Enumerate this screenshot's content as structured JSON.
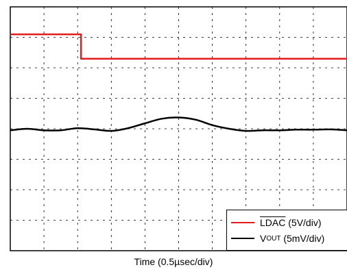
{
  "chart_data": {
    "type": "line",
    "xlabel": "Time (0.5µsec/div)",
    "ylabel": "",
    "grid": true,
    "x_divisions": 10,
    "y_divisions": 8,
    "legend_placement": "bottom-right",
    "series": [
      {
        "name": "LDAC",
        "scale": "(5V/div)",
        "color": "#e41a1c",
        "x": [
          0,
          2.1,
          2.1,
          10
        ],
        "y": [
          7.1,
          7.1,
          6.3,
          6.3
        ]
      },
      {
        "name": "V",
        "subscript": "OUT",
        "scale": "(5mV/div)",
        "color": "#000000",
        "x": [
          0,
          0.5,
          1,
          1.5,
          2,
          2.5,
          3,
          3.5,
          4,
          4.5,
          5,
          5.5,
          6,
          6.5,
          7,
          7.5,
          8,
          8.5,
          9,
          9.5,
          10
        ],
        "y": [
          3.95,
          4.0,
          3.95,
          3.95,
          4.02,
          3.98,
          3.93,
          4.02,
          4.18,
          4.33,
          4.37,
          4.3,
          4.12,
          4.0,
          3.93,
          3.95,
          3.95,
          3.97,
          3.97,
          3.98,
          3.95
        ]
      }
    ]
  },
  "legend": {
    "ldac_name": "LDAC",
    "ldac_scale": " (5V/div)",
    "vout_name": "V",
    "vout_sub": "OUT",
    "vout_scale": " (5mV/div)"
  }
}
